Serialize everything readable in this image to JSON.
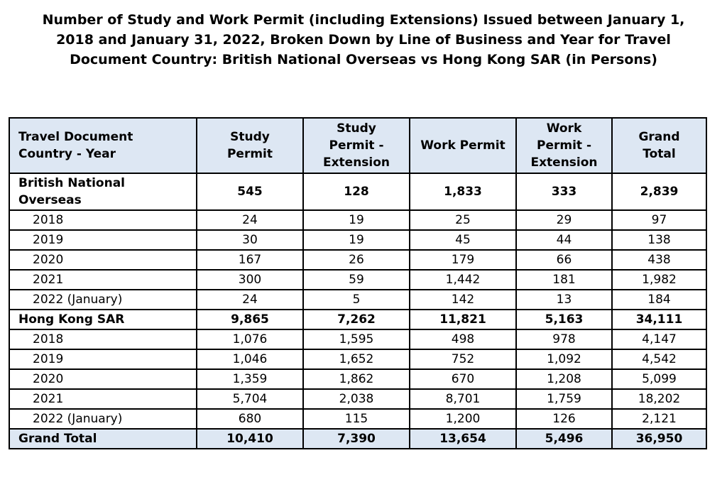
{
  "title": {
    "line1": "Number of Study and Work Permit (including Extensions) Issued between January 1,",
    "line2": "2018 and January 31, 2022, Broken Down by Line of Business and Year for Travel",
    "line3": "Document Country: British National Overseas vs Hong Kong SAR (in Persons)"
  },
  "table": {
    "headers": {
      "country_year": [
        "Travel Document",
        "Country - Year"
      ],
      "study_permit": [
        "Study",
        "Permit"
      ],
      "study_permit_extension": [
        "Study",
        "Permit -",
        "Extension"
      ],
      "work_permit": [
        "Work Permit"
      ],
      "work_permit_extension": [
        "Work",
        "Permit -",
        "Extension"
      ],
      "grand_total": [
        "Grand",
        "Total"
      ]
    },
    "rows": [
      {
        "kind": "group",
        "label": "British National Overseas",
        "cells": [
          "545",
          "128",
          "1,833",
          "333",
          "2,839"
        ]
      },
      {
        "kind": "year",
        "label": "2018",
        "cells": [
          "24",
          "19",
          "25",
          "29",
          "97"
        ]
      },
      {
        "kind": "year",
        "label": "2019",
        "cells": [
          "30",
          "19",
          "45",
          "44",
          "138"
        ]
      },
      {
        "kind": "year",
        "label": "2020",
        "cells": [
          "167",
          "26",
          "179",
          "66",
          "438"
        ]
      },
      {
        "kind": "year",
        "label": "2021",
        "cells": [
          "300",
          "59",
          "1,442",
          "181",
          "1,982"
        ]
      },
      {
        "kind": "year",
        "label": "2022 (January)",
        "cells": [
          "24",
          "5",
          "142",
          "13",
          "184"
        ]
      },
      {
        "kind": "group",
        "label": "Hong Kong SAR",
        "cells": [
          "9,865",
          "7,262",
          "11,821",
          "5,163",
          "34,111"
        ]
      },
      {
        "kind": "year",
        "label": "2018",
        "cells": [
          "1,076",
          "1,595",
          "498",
          "978",
          "4,147"
        ]
      },
      {
        "kind": "year",
        "label": "2019",
        "cells": [
          "1,046",
          "1,652",
          "752",
          "1,092",
          "4,542"
        ]
      },
      {
        "kind": "year",
        "label": "2020",
        "cells": [
          "1,359",
          "1,862",
          "670",
          "1,208",
          "5,099"
        ]
      },
      {
        "kind": "year",
        "label": "2021",
        "cells": [
          "5,704",
          "2,038",
          "8,701",
          "1,759",
          "18,202"
        ]
      },
      {
        "kind": "year",
        "label": "2022 (January)",
        "cells": [
          "680",
          "115",
          "1,200",
          "126",
          "2,121"
        ]
      },
      {
        "kind": "total",
        "label": "Grand Total",
        "cells": [
          "10,410",
          "7,390",
          "13,654",
          "5,496",
          "36,950"
        ]
      }
    ]
  },
  "colors": {
    "header_background": "#dde7f3",
    "border": "#000000"
  }
}
